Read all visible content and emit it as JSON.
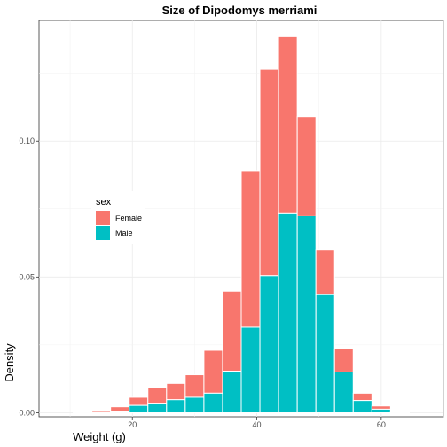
{
  "chart_data": {
    "type": "bar",
    "title": "Size of Dipodomys merriami",
    "xlabel": "Weight (g)",
    "ylabel": "Density",
    "xlim": [
      5,
      70
    ],
    "ylim": [
      -0.0015,
      0.1445
    ],
    "x_ticks": [
      20,
      40,
      60
    ],
    "x_tick_labels": [
      "20",
      "40",
      "60"
    ],
    "y_ticks": [
      0,
      0.05,
      0.1
    ],
    "y_tick_labels": [
      "0.00",
      "0.05",
      "0.10"
    ],
    "grid": true,
    "stacked": true,
    "bin_width": 3,
    "bin_centers": [
      12,
      15,
      18,
      21,
      24,
      27,
      30,
      33,
      36,
      39,
      42,
      45,
      48,
      51,
      54,
      57,
      60,
      63
    ],
    "legend": {
      "title": "sex",
      "position": "left-middle"
    },
    "series": [
      {
        "name": "Female",
        "color": "#F8766D",
        "values": [
          0.0002,
          0.0007,
          0.0016,
          0.003,
          0.0057,
          0.006,
          0.0083,
          0.0158,
          0.0295,
          0.0575,
          0.076,
          0.065,
          0.0365,
          0.0165,
          0.0085,
          0.0027,
          0.0012,
          0.0003
        ]
      },
      {
        "name": "Male",
        "color": "#00BFC4",
        "values": [
          0.0,
          0.0001,
          0.0006,
          0.0027,
          0.0035,
          0.0048,
          0.0057,
          0.0072,
          0.0153,
          0.0315,
          0.0505,
          0.0735,
          0.0725,
          0.0435,
          0.015,
          0.0045,
          0.0013,
          0.0002
        ]
      }
    ]
  }
}
